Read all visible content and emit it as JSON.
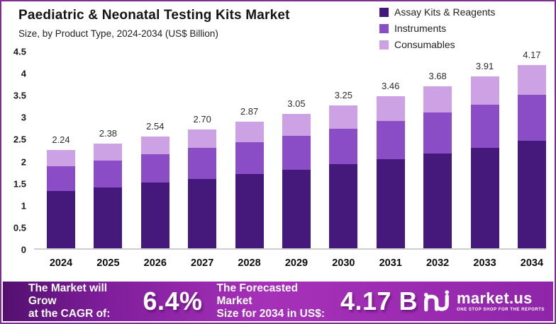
{
  "header": {
    "title": "Paediatric & Neonatal Testing Kits Market",
    "subtitle": "Size, by Product Type, 2024-2034 (US$ Billion)"
  },
  "legend": {
    "items": [
      {
        "label": "Assay Kits & Reagents",
        "color": "#45197b"
      },
      {
        "label": "Instruments",
        "color": "#8b4dc6"
      },
      {
        "label": "Consumables",
        "color": "#cda2e5"
      }
    ]
  },
  "chart_data": {
    "type": "bar",
    "stacked": true,
    "title": "Paediatric & Neonatal Testing Kits Market",
    "subtitle": "Size, by Product Type, 2024-2034 (US$ Billion)",
    "unit": "US$ Billion",
    "categories": [
      "2024",
      "2025",
      "2026",
      "2027",
      "2028",
      "2029",
      "2030",
      "2031",
      "2032",
      "2033",
      "2034"
    ],
    "series": [
      {
        "name": "Assay Kits & Reagents",
        "color": "#45197b",
        "values": [
          1.31,
          1.39,
          1.49,
          1.58,
          1.69,
          1.79,
          1.91,
          2.03,
          2.16,
          2.29,
          2.44
        ]
      },
      {
        "name": "Instruments",
        "color": "#8b4dc6",
        "values": [
          0.55,
          0.6,
          0.64,
          0.7,
          0.72,
          0.77,
          0.81,
          0.87,
          0.92,
          0.98,
          1.05
        ]
      },
      {
        "name": "Consumables",
        "color": "#cda2e5",
        "values": [
          0.38,
          0.39,
          0.41,
          0.42,
          0.46,
          0.49,
          0.53,
          0.56,
          0.6,
          0.64,
          0.68
        ]
      }
    ],
    "totals": [
      2.24,
      2.38,
      2.54,
      2.7,
      2.87,
      3.05,
      3.25,
      3.46,
      3.68,
      3.91,
      4.17
    ],
    "total_labels": [
      "2.24",
      "2.38",
      "2.54",
      "2.70",
      "2.87",
      "3.05",
      "3.25",
      "3.46",
      "3.68",
      "3.91",
      "4.17"
    ],
    "y_ticks": [
      "4.5",
      "4",
      "3.5",
      "3",
      "2.5",
      "2",
      "1.5",
      "1",
      "0.5",
      "0"
    ],
    "ylim": [
      0,
      4.5
    ],
    "grid": false,
    "legend_position": "top-right"
  },
  "banner": {
    "cagr_label_line1": "The Market will Grow",
    "cagr_label_line2": "at the CAGR of:",
    "cagr_value": "6.4%",
    "forecast_label_line1": "The Forecasted Market",
    "forecast_label_line2": "Size for 2034 in US$:",
    "forecast_value": "4.17 B",
    "logo_text": "market.us",
    "logo_tagline": "ONE STOP SHOP FOR THE REPORTS"
  },
  "colors": {
    "frame_border": "#7c2e91",
    "banner_gradient_left": "#53106e",
    "banner_gradient_mid": "#a631b9",
    "banner_gradient_right": "#8f25a9",
    "baseline": "#cdcdcd"
  }
}
